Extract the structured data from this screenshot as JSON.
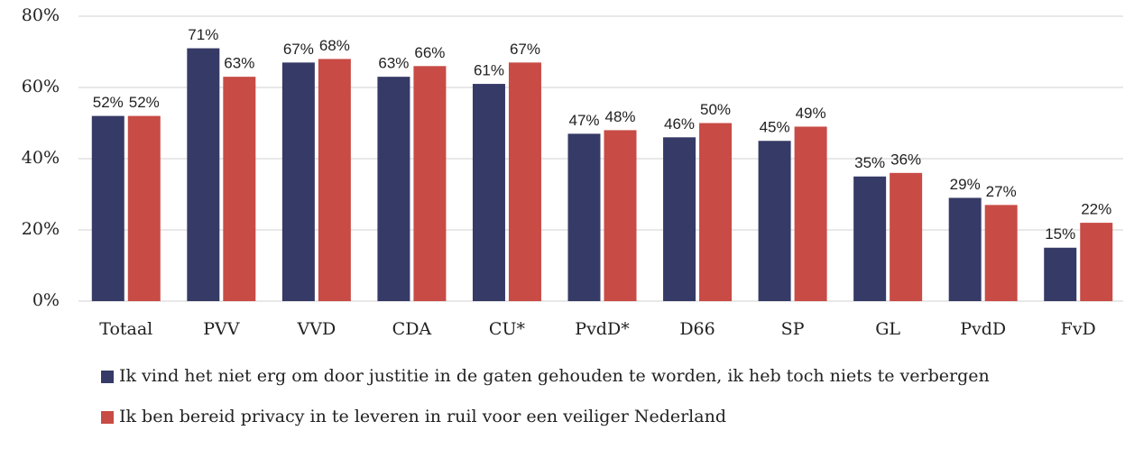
{
  "chart_data": {
    "type": "bar",
    "categories": [
      "Totaal",
      "PVV",
      "VVD",
      "CDA",
      "CU*",
      "PvdD*",
      "D66",
      "SP",
      "GL",
      "PvdD",
      "FvD"
    ],
    "series": [
      {
        "name": "Ik vind het niet erg om door justitie in de gaten gehouden te worden, ik heb toch niets te verbergen",
        "color": "#363a66",
        "values": [
          52,
          71,
          67,
          63,
          61,
          47,
          46,
          45,
          35,
          29,
          15
        ],
        "value_labels": [
          "52%",
          "71%",
          "67%",
          "63%",
          "61%",
          "47%",
          "46%",
          "45%",
          "35%",
          "29%",
          "15%"
        ]
      },
      {
        "name": "Ik ben bereid privacy in te leveren in ruil voor een veiliger Nederland",
        "color": "#c84b45",
        "values": [
          52,
          63,
          68,
          66,
          67,
          48,
          50,
          49,
          36,
          27,
          22
        ],
        "value_labels": [
          "52%",
          "63%",
          "68%",
          "66%",
          "67%",
          "48%",
          "50%",
          "49%",
          "36%",
          "27%",
          "22%"
        ]
      }
    ],
    "ylim": [
      0,
      80
    ],
    "yticks": [
      {
        "value": 0,
        "label": "0%"
      },
      {
        "value": 20,
        "label": "20%"
      },
      {
        "value": 40,
        "label": "40%"
      },
      {
        "value": 60,
        "label": "60%"
      },
      {
        "value": 80,
        "label": "80%"
      }
    ],
    "grid": true
  }
}
